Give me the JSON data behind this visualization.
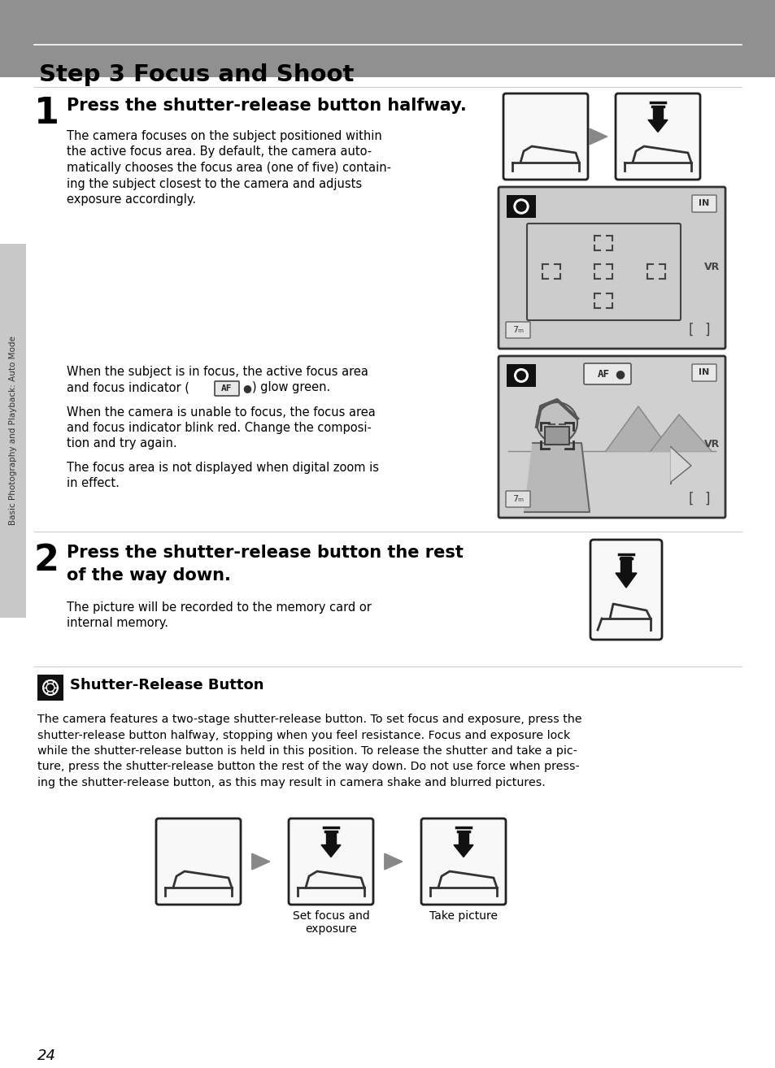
{
  "bg_color": "#ffffff",
  "header_bg": "#909090",
  "header_text": "Step 3 Focus and Shoot",
  "sidebar_bg": "#c8c8c8",
  "page_num": "24",
  "sidebar_text": "Basic Photography and Playback: Auto Mode",
  "step1_num": "1",
  "step1_title": "Press the shutter-release button halfway.",
  "step2_num": "2",
  "step2_title_line1": "Press the shutter-release button the rest",
  "step2_title_line2": "of the way down.",
  "note_title": "Shutter-Release Button",
  "label_set_focus": "Set focus and\nexposure",
  "label_take_picture": "Take picture"
}
